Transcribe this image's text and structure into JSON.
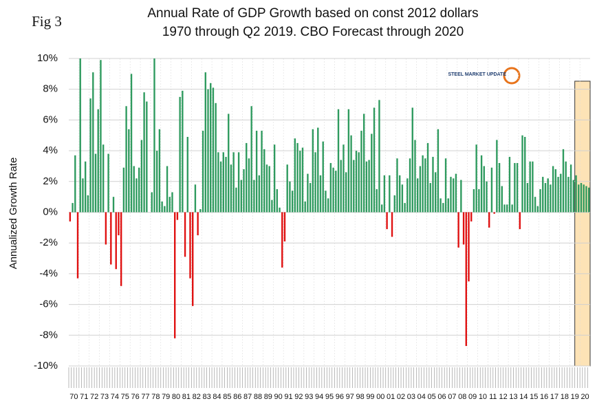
{
  "chart_data": {
    "type": "bar",
    "fig_label": "Fig 3",
    "title": "Annual Rate of GDP Growth based on const 2012 dollars",
    "subtitle": "1970 through Q2 2019. CBO Forecast through 2020",
    "y_label": "Annualized Growth Rate",
    "logo": "STEEL MARKET UPDATE",
    "categories": [
      "70",
      null,
      null,
      null,
      "71",
      null,
      null,
      null,
      "72",
      null,
      null,
      null,
      "73",
      null,
      null,
      null,
      "74",
      null,
      null,
      null,
      "75",
      null,
      null,
      null,
      "76",
      null,
      null,
      null,
      "77",
      null,
      null,
      null,
      "78",
      null,
      null,
      null,
      "79",
      null,
      null,
      null,
      "80",
      null,
      null,
      null,
      "81",
      null,
      null,
      null,
      "82",
      null,
      null,
      null,
      "83",
      null,
      null,
      null,
      "84",
      null,
      null,
      null,
      "85",
      null,
      null,
      null,
      "86",
      null,
      null,
      null,
      "87",
      null,
      null,
      null,
      "88",
      null,
      null,
      null,
      "89",
      null,
      null,
      null,
      "90",
      null,
      null,
      null,
      "91",
      null,
      null,
      null,
      "92",
      null,
      null,
      null,
      "93",
      null,
      null,
      null,
      "94",
      null,
      null,
      null,
      "95",
      null,
      null,
      null,
      "96",
      null,
      null,
      null,
      "97",
      null,
      null,
      null,
      "98",
      null,
      null,
      null,
      "99",
      null,
      null,
      null,
      "00",
      null,
      null,
      null,
      "01",
      null,
      null,
      null,
      "02",
      null,
      null,
      null,
      "03",
      null,
      null,
      null,
      "04",
      null,
      null,
      null,
      "05",
      null,
      null,
      null,
      "06",
      null,
      null,
      null,
      "07",
      null,
      null,
      null,
      "08",
      null,
      null,
      null,
      "09",
      null,
      null,
      null,
      "10",
      null,
      null,
      null,
      "11",
      null,
      null,
      null,
      "12",
      null,
      null,
      null,
      "13",
      null,
      null,
      null,
      "14",
      null,
      null,
      null,
      "15",
      null,
      null,
      null,
      "16",
      null,
      null,
      null,
      "17",
      null,
      null,
      null,
      "18",
      null,
      null,
      null,
      "19",
      null,
      null,
      null,
      "20",
      null,
      null,
      null
    ],
    "values": [
      -0.6,
      0.6,
      3.7,
      -4.3,
      10,
      2.2,
      3.3,
      1.1,
      7.4,
      9.1,
      3.8,
      6.7,
      9.9,
      4.4,
      -2.1,
      3.8,
      -3.4,
      1.0,
      -3.7,
      -1.5,
      -4.8,
      2.9,
      6.9,
      5.4,
      9.0,
      3.0,
      2.2,
      2.9,
      4.7,
      7.8,
      7.2,
      0.0,
      1.3,
      10,
      4.0,
      5.4,
      0.7,
      0.4,
      3.0,
      1.0,
      1.3,
      -8.2,
      -0.5,
      7.5,
      7.9,
      -2.9,
      4.9,
      -4.3,
      -6.1,
      1.8,
      -1.5,
      0.2,
      5.3,
      9.1,
      8.0,
      8.4,
      8.1,
      7.1,
      3.9,
      3.3,
      3.9,
      3.6,
      6.4,
      3.1,
      3.9,
      1.6,
      3.9,
      2.1,
      2.8,
      4.5,
      3.5,
      6.9,
      2.1,
      5.3,
      2.4,
      5.3,
      4.1,
      3.1,
      3.0,
      0.8,
      4.4,
      1.5,
      0.3,
      -3.6,
      -1.9,
      3.1,
      2.0,
      1.4,
      4.8,
      4.5,
      4.0,
      4.2,
      0.7,
      2.5,
      1.9,
      5.4,
      3.9,
      5.5,
      2.4,
      4.6,
      1.4,
      0.9,
      3.2,
      2.9,
      2.7,
      6.7,
      3.4,
      4.4,
      2.6,
      6.7,
      5.0,
      3.4,
      4.0,
      3.9,
      5.3,
      6.4,
      3.3,
      3.4,
      5.1,
      6.8,
      1.5,
      7.3,
      0.5,
      2.4,
      -1.1,
      2.4,
      -1.6,
      1.1,
      3.5,
      2.4,
      1.8,
      0.6,
      2.2,
      3.5,
      6.8,
      4.7,
      2.2,
      3.0,
      3.7,
      3.5,
      4.5,
      1.9,
      3.6,
      2.6,
      5.4,
      0.9,
      0.6,
      3.5,
      0.9,
      2.3,
      2.2,
      2.5,
      -2.3,
      2.1,
      -2.1,
      -8.7,
      -4.5,
      -0.6,
      1.5,
      4.4,
      1.5,
      3.7,
      3.0,
      2.0,
      -1.0,
      2.9,
      -0.1,
      4.7,
      3.2,
      1.7,
      0.5,
      0.5,
      3.6,
      0.5,
      3.2,
      3.2,
      -1.1,
      5.0,
      4.9,
      1.9,
      3.3,
      3.3,
      1.0,
      0.4,
      1.5,
      2.3,
      1.9,
      2.2,
      1.8,
      3.0,
      2.8,
      2.3,
      2.5,
      4.1,
      3.3,
      2.3,
      3.1,
      2.1,
      2.4,
      1.8,
      1.9,
      1.8,
      1.7,
      1.6
    ],
    "positive_color": "#2e9a5e",
    "negative_color": "#e01010",
    "ylim": [
      -10,
      10
    ],
    "yticks": [
      {
        "value": -10,
        "label": "-10%"
      },
      {
        "value": -8,
        "label": "-8%"
      },
      {
        "value": -6,
        "label": "-6%"
      },
      {
        "value": -4,
        "label": "-4%"
      },
      {
        "value": -2,
        "label": "-2%"
      },
      {
        "value": 0,
        "label": "0%"
      },
      {
        "value": 2,
        "label": "2%"
      },
      {
        "value": 4,
        "label": "4%"
      },
      {
        "value": 6,
        "label": "6%"
      },
      {
        "value": 8,
        "label": "8%"
      },
      {
        "value": 10,
        "label": "10%"
      }
    ],
    "grid": true
  }
}
